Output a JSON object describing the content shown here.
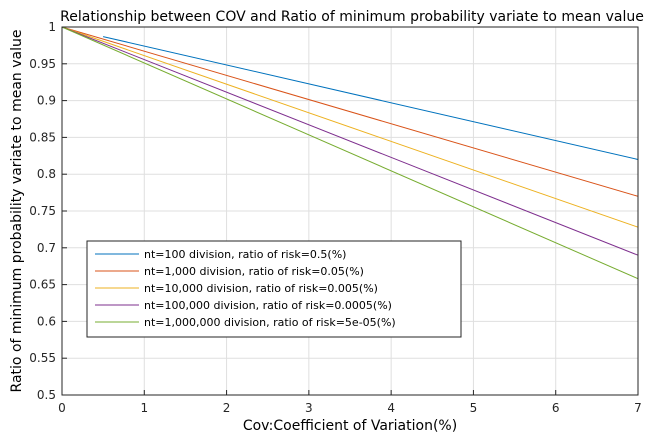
{
  "chart_data": {
    "type": "line",
    "title": "Relationship between COV and Ratio of minimum probability variate to mean value",
    "xlabel": "Cov:Coefficient of Variation(%)",
    "ylabel": "Ratio of minimum probability variate to mean value",
    "xlim": [
      0,
      7
    ],
    "ylim": [
      0.5,
      1
    ],
    "xticks": [
      0,
      1,
      2,
      3,
      4,
      5,
      6,
      7
    ],
    "xtick_labels": [
      "0",
      "1",
      "2",
      "3",
      "4",
      "5",
      "6",
      "7"
    ],
    "yticks": [
      0.5,
      0.55,
      0.6,
      0.65,
      0.7,
      0.75,
      0.8,
      0.85,
      0.9,
      0.95,
      1
    ],
    "ytick_labels": [
      "0.5",
      "0.55",
      "0.6",
      "0.65",
      "0.7",
      "0.75",
      "0.8",
      "0.85",
      "0.9",
      "0.95",
      "1"
    ],
    "grid": true,
    "legend_position": "lower-left",
    "series": [
      {
        "name": "nt=100 division, ratio of risk=0.5(%)",
        "color": "#0072BD",
        "x": [
          0.5,
          7
        ],
        "y": [
          0.987,
          0.82
        ]
      },
      {
        "name": "nt=1,000 division, ratio of risk=0.05(%)",
        "color": "#D95319",
        "x": [
          0,
          7
        ],
        "y": [
          1,
          0.77
        ]
      },
      {
        "name": "nt=10,000 division, ratio of risk=0.005(%)",
        "color": "#EDB120",
        "x": [
          0,
          7
        ],
        "y": [
          1,
          0.728
        ]
      },
      {
        "name": "nt=100,000 division, ratio of risk=0.0005(%)",
        "color": "#7E2F8E",
        "x": [
          0,
          7
        ],
        "y": [
          1,
          0.69
        ]
      },
      {
        "name": "nt=1,000,000 division, ratio of risk=5e-05(%)",
        "color": "#77AC30",
        "x": [
          0,
          7
        ],
        "y": [
          1,
          0.658
        ]
      }
    ]
  }
}
